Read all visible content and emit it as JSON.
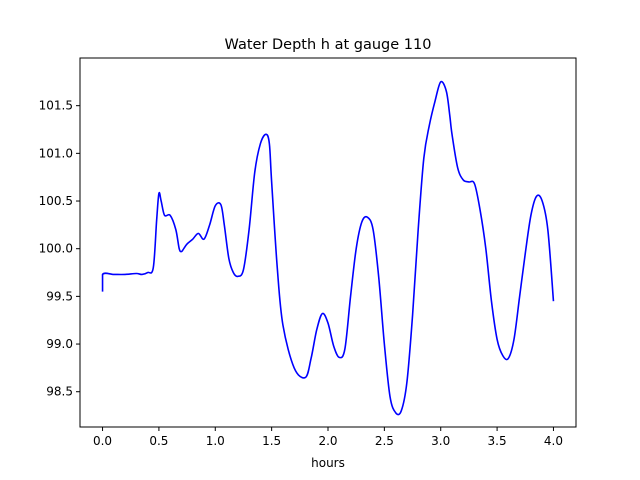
{
  "chart_data": {
    "type": "line",
    "title": "Water Depth h at gauge 110",
    "xlabel": "hours",
    "ylabel": "",
    "xlim": [
      -0.2,
      4.2
    ],
    "ylim": [
      98.13,
      102.0
    ],
    "xticks": [
      0.0,
      0.5,
      1.0,
      1.5,
      2.0,
      2.5,
      3.0,
      3.5,
      4.0
    ],
    "xtick_labels": [
      "0.0",
      "0.5",
      "1.0",
      "1.5",
      "2.0",
      "2.5",
      "3.0",
      "3.5",
      "4.0"
    ],
    "yticks": [
      98.5,
      99.0,
      99.5,
      100.0,
      100.5,
      101.0,
      101.5
    ],
    "ytick_labels": [
      "98.5",
      "99.0",
      "99.5",
      "100.0",
      "100.5",
      "101.0",
      "101.5"
    ],
    "grid": false,
    "series": [
      {
        "color": "#0000ff",
        "x": [
          0.0,
          0.0,
          0.1,
          0.2,
          0.3,
          0.35,
          0.4,
          0.45,
          0.48,
          0.5,
          0.52,
          0.55,
          0.6,
          0.65,
          0.68,
          0.7,
          0.72,
          0.75,
          0.8,
          0.85,
          0.9,
          0.95,
          1.0,
          1.05,
          1.08,
          1.12,
          1.16,
          1.2,
          1.25,
          1.3,
          1.35,
          1.4,
          1.45,
          1.48,
          1.5,
          1.55,
          1.6,
          1.7,
          1.8,
          1.85,
          1.9,
          1.95,
          2.0,
          2.05,
          2.1,
          2.15,
          2.2,
          2.25,
          2.3,
          2.35,
          2.4,
          2.45,
          2.5,
          2.55,
          2.6,
          2.65,
          2.7,
          2.75,
          2.8,
          2.85,
          2.9,
          2.95,
          3.0,
          3.05,
          3.08,
          3.1,
          3.15,
          3.2,
          3.25,
          3.3,
          3.35,
          3.4,
          3.45,
          3.5,
          3.55,
          3.6,
          3.65,
          3.7,
          3.75,
          3.8,
          3.85,
          3.9,
          3.95,
          4.0
        ],
        "y": [
          99.55,
          99.73,
          99.73,
          99.73,
          99.74,
          99.73,
          99.75,
          99.8,
          100.3,
          100.58,
          100.5,
          100.35,
          100.35,
          100.2,
          100.0,
          99.97,
          100.0,
          100.05,
          100.1,
          100.16,
          100.1,
          100.25,
          100.45,
          100.46,
          100.25,
          99.9,
          99.75,
          99.71,
          99.78,
          100.2,
          100.8,
          101.1,
          101.2,
          101.1,
          100.7,
          99.8,
          99.2,
          98.75,
          98.65,
          98.85,
          99.15,
          99.32,
          99.22,
          98.98,
          98.86,
          98.95,
          99.5,
          100.0,
          100.28,
          100.33,
          100.2,
          99.7,
          99.0,
          98.45,
          98.28,
          98.3,
          98.6,
          99.3,
          100.2,
          100.95,
          101.3,
          101.55,
          101.75,
          101.65,
          101.4,
          101.2,
          100.85,
          100.72,
          100.7,
          100.68,
          100.4,
          100.0,
          99.45,
          99.05,
          98.88,
          98.85,
          99.05,
          99.5,
          99.95,
          100.35,
          100.55,
          100.5,
          100.2,
          99.45
        ]
      }
    ]
  }
}
